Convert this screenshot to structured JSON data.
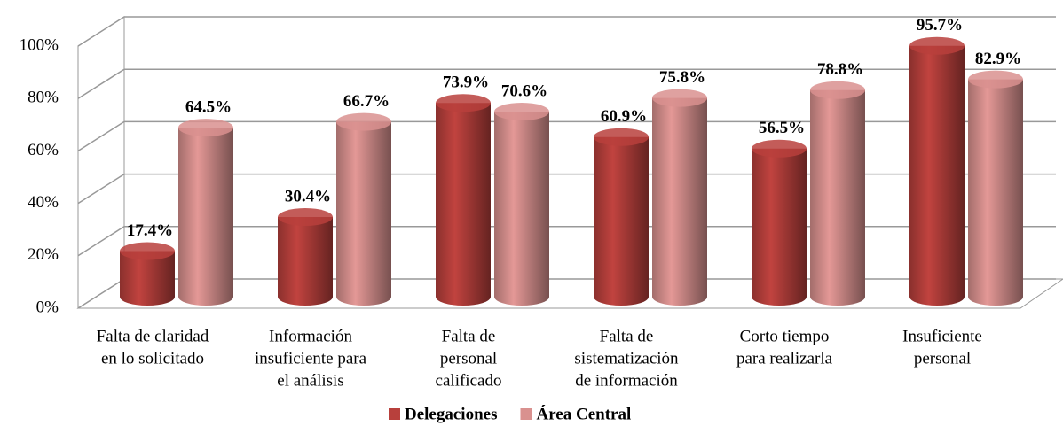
{
  "chart_data": {
    "type": "bar3d",
    "categories": [
      [
        "Falta de claridad",
        "en lo solicitado"
      ],
      [
        "Información",
        "insuficiente para",
        "el análisis"
      ],
      [
        "Falta de",
        "personal",
        "calificado"
      ],
      [
        "Falta de",
        "sistematización",
        "de información"
      ],
      [
        "Corto tiempo",
        "para realizarla"
      ],
      [
        "Insuficiente",
        "personal"
      ]
    ],
    "series": [
      {
        "name": "Delegaciones",
        "color": "#b8403c",
        "values": [
          17.4,
          30.4,
          73.9,
          60.9,
          56.5,
          95.7
        ],
        "value_labels": [
          "17.4%",
          "30.4%",
          "73.9%",
          "60.9%",
          "56.5%",
          "95.7%"
        ]
      },
      {
        "name": "Área Central",
        "color": "#d9918f",
        "values": [
          64.5,
          66.7,
          70.6,
          75.8,
          78.8,
          82.9
        ],
        "value_labels": [
          "64.5%",
          "66.7%",
          "70.6%",
          "75.8%",
          "78.8%",
          "82.9%"
        ]
      }
    ],
    "ylim": [
      0,
      100
    ],
    "yticks": [
      {
        "value": 0,
        "label": "0%"
      },
      {
        "value": 20,
        "label": "20%"
      },
      {
        "value": 40,
        "label": "40%"
      },
      {
        "value": 60,
        "label": "60%"
      },
      {
        "value": 80,
        "label": "80%"
      },
      {
        "value": 100,
        "label": "100%"
      }
    ],
    "grid": true
  }
}
